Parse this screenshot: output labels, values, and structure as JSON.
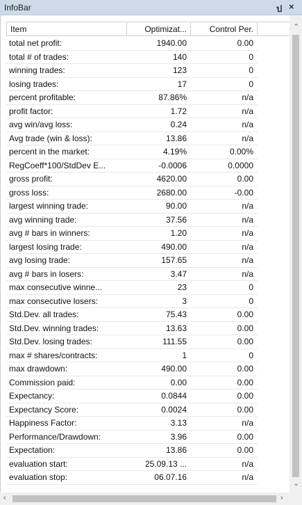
{
  "panel": {
    "title": "InfoBar",
    "pin": "ป",
    "close": "×",
    "columns": [
      "Item",
      "Optimizat...",
      "Control Per."
    ],
    "rows": [
      [
        "total net profit:",
        "1940.00",
        "0.00"
      ],
      [
        "total # of trades:",
        "140",
        "0"
      ],
      [
        "winning trades:",
        "123",
        "0"
      ],
      [
        "losing trades:",
        "17",
        "0"
      ],
      [
        "percent profitable:",
        "87.86%",
        "n/a"
      ],
      [
        "profit factor:",
        "1.72",
        "n/a"
      ],
      [
        "avg win/avg loss:",
        "0.24",
        "n/a"
      ],
      [
        "Avg trade (win & loss):",
        "13.86",
        "n/a"
      ],
      [
        "percent in the market:",
        "4.19%",
        "0.00%"
      ],
      [
        "RegCoeff*100/StdDev E...",
        "-0.0006",
        "0.0000"
      ],
      [
        "gross profit:",
        "4620.00",
        "0.00"
      ],
      [
        "gross loss:",
        "2680.00",
        "-0.00"
      ],
      [
        "largest winning trade:",
        "90.00",
        "n/a"
      ],
      [
        "avg winning trade:",
        "37.56",
        "n/a"
      ],
      [
        "avg # bars in winners:",
        "1.20",
        "n/a"
      ],
      [
        "largest losing trade:",
        "490.00",
        "n/a"
      ],
      [
        "avg losing trade:",
        "157.65",
        "n/a"
      ],
      [
        "avg # bars in losers:",
        "3.47",
        "n/a"
      ],
      [
        "max consecutive winne...",
        "23",
        "0"
      ],
      [
        "max consecutive losers:",
        "3",
        "0"
      ],
      [
        "Std.Dev. all trades:",
        "75.43",
        "0.00"
      ],
      [
        "Std.Dev. winning trades:",
        "13.63",
        "0.00"
      ],
      [
        "Std.Dev. losing trades:",
        "111.55",
        "0.00"
      ],
      [
        "max # shares/contracts:",
        "1",
        "0"
      ],
      [
        "max drawdown:",
        "490.00",
        "0.00"
      ],
      [
        "Commission paid:",
        "0.00",
        "0.00"
      ],
      [
        "Expectancy:",
        "0.0844",
        "0.00"
      ],
      [
        "Expectancy Score:",
        "0.0024",
        "0.00"
      ],
      [
        "Happiness Factor:",
        "3.13",
        "n/a"
      ],
      [
        "Performance/Drawdown:",
        "3.96",
        "0.00"
      ],
      [
        "Expectation:",
        "13.86",
        "0.00"
      ],
      [
        "evaluation start:",
        "25.09.13 ...",
        "n/a"
      ],
      [
        "evaluation stop:",
        "06.07.16",
        "n/a"
      ]
    ]
  }
}
